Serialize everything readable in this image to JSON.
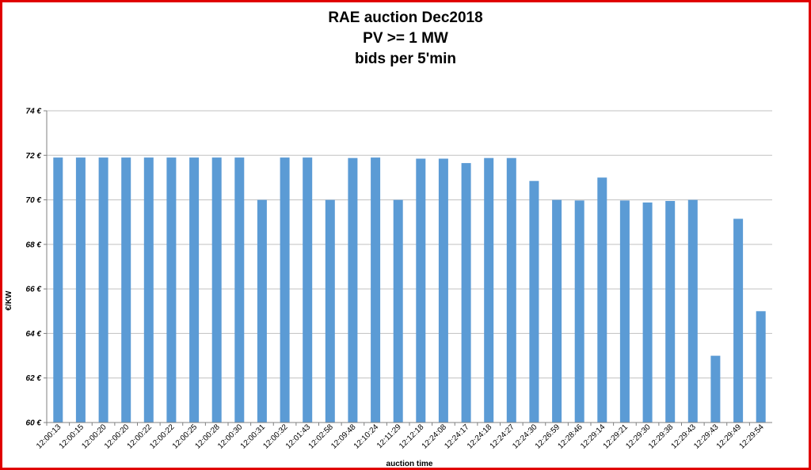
{
  "chart_data": {
    "type": "bar",
    "title_lines": [
      "RAE auction Dec2018",
      "PV >= 1 MW",
      "bids per 5'min"
    ],
    "xlabel": "auction time",
    "ylabel": "€/KW",
    "ylim": [
      60,
      74
    ],
    "yticks": [
      "60 €",
      "62 €",
      "64 €",
      "66 €",
      "68 €",
      "70 €",
      "72 €",
      "74 €"
    ],
    "grid": true,
    "bar_color": "#5b9bd5",
    "categories": [
      "12:00:13",
      "12:00:15",
      "12:00:20",
      "12:00:20",
      "12:00:22",
      "12:00:22",
      "12:00:25",
      "12:00:28",
      "12:00:30",
      "12:00:31",
      "12:00:32",
      "12:01:43",
      "12:02:58",
      "12:09:48",
      "12:10:24",
      "12:11:29",
      "12:12:18",
      "12:24:08",
      "12:24:17",
      "12:24:18",
      "12:24:27",
      "12:24:30",
      "12:26:59",
      "12:28:46",
      "12:29:14",
      "12:29:21",
      "12:29:30",
      "12:29:38",
      "12:29:43",
      "12:29:43",
      "12:29:49",
      "12:29:54"
    ],
    "values": [
      71.9,
      71.9,
      71.9,
      71.9,
      71.9,
      71.9,
      71.9,
      71.9,
      71.9,
      70.0,
      71.9,
      71.9,
      70.0,
      71.88,
      71.9,
      70.0,
      71.85,
      71.85,
      71.65,
      71.88,
      71.88,
      70.85,
      70.0,
      69.97,
      71.0,
      69.97,
      69.88,
      69.95,
      70.0,
      63.0,
      69.15,
      65.0
    ]
  }
}
